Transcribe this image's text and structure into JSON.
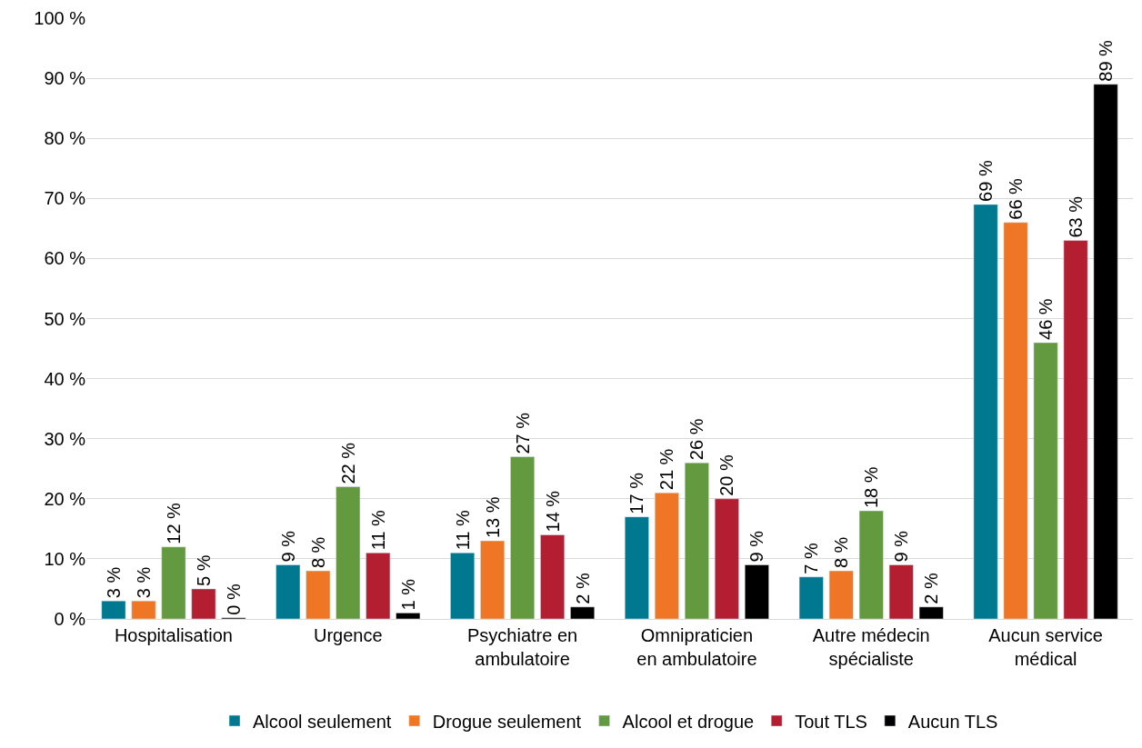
{
  "chart_data": {
    "type": "bar",
    "categories": [
      "Hospitalisation",
      "Urgence",
      "Psychiatre en\nambulatoire",
      "Omnipraticien\nen ambulatoire",
      "Autre médecin\nspécialiste",
      "Aucun service\nmédical"
    ],
    "series": [
      {
        "name": "Alcool seulement",
        "color": "#00788f",
        "values": [
          3,
          9,
          11,
          17,
          7,
          69
        ],
        "value_labels": [
          "3 %",
          "9 %",
          "11 %",
          "17 %",
          "7 %",
          "69 %"
        ]
      },
      {
        "name": "Drogue seulement",
        "color": "#ee7624",
        "values": [
          3,
          8,
          13,
          21,
          8,
          66
        ],
        "value_labels": [
          "3 %",
          "8 %",
          "13 %",
          "21 %",
          "8 %",
          "66 %"
        ]
      },
      {
        "name": "Alcool et drogue",
        "color": "#639a3f",
        "values": [
          12,
          22,
          27,
          26,
          18,
          46
        ],
        "value_labels": [
          "12 %",
          "22 %",
          "27 %",
          "26 %",
          "18 %",
          "46 %"
        ]
      },
      {
        "name": "Tout TLS",
        "color": "#b31f31",
        "values": [
          5,
          11,
          14,
          20,
          9,
          63
        ],
        "value_labels": [
          "5 %",
          "11 %",
          "14 %",
          "20 %",
          "9 %",
          "63 %"
        ]
      },
      {
        "name": "Aucun TLS",
        "color": "#000000",
        "values": [
          0.2,
          1,
          2,
          9,
          2,
          89
        ],
        "value_labels": [
          "0 %",
          "1 %",
          "2 %",
          "9 %",
          "2 %",
          "89 %"
        ]
      }
    ],
    "ylim": [
      0,
      100
    ],
    "yticks": [
      {
        "value": 0,
        "label": "0 %"
      },
      {
        "value": 10,
        "label": "10 %"
      },
      {
        "value": 20,
        "label": "20 %"
      },
      {
        "value": 30,
        "label": "30 %"
      },
      {
        "value": 40,
        "label": "40 %"
      },
      {
        "value": 50,
        "label": "50 %"
      },
      {
        "value": 60,
        "label": "60 %"
      },
      {
        "value": 70,
        "label": "70 %"
      },
      {
        "value": 80,
        "label": "80 %"
      },
      {
        "value": 90,
        "label": "90 %"
      },
      {
        "value": 100,
        "label": "100 %"
      }
    ],
    "grid": "y",
    "legend": "bottom"
  }
}
